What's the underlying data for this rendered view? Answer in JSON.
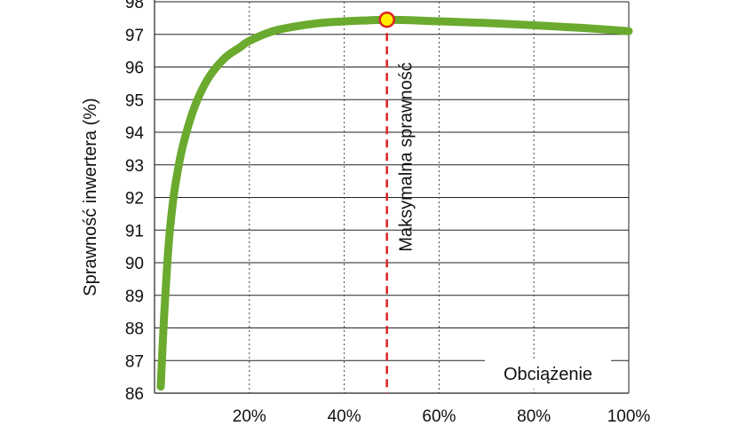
{
  "chart_data": {
    "type": "line",
    "title": "",
    "ylabel": "Sprawność inwertera (%)",
    "xlabel": "Obciążenie",
    "xlim": [
      0,
      100
    ],
    "ylim": [
      86,
      98
    ],
    "grid": true,
    "x_ticks": [
      "20%",
      "40%",
      "60%",
      "80%",
      "100%"
    ],
    "x_tick_values": [
      20,
      40,
      60,
      80,
      100
    ],
    "y_ticks": [
      "86",
      "87",
      "88",
      "89",
      "90",
      "91",
      "92",
      "93",
      "94",
      "95",
      "96",
      "97",
      "98"
    ],
    "series": [
      {
        "color": "#6aaa2e",
        "x": [
          1.3,
          2,
          3,
          4,
          5,
          6,
          8,
          10,
          12,
          15,
          18,
          20,
          25,
          30,
          35,
          40,
          45,
          49,
          55,
          60,
          70,
          80,
          90,
          100
        ],
        "y": [
          86.2,
          88.3,
          90.6,
          92.0,
          92.9,
          93.6,
          94.6,
          95.3,
          95.8,
          96.3,
          96.6,
          96.8,
          97.1,
          97.25,
          97.35,
          97.4,
          97.43,
          97.45,
          97.43,
          97.4,
          97.35,
          97.28,
          97.2,
          97.1
        ]
      }
    ],
    "annotations": [
      {
        "text": "Maksymalna sprawność",
        "x": 49,
        "y": 97.45,
        "line_color": "#dd2222",
        "marker_fill": "#ffee00",
        "marker_stroke": "#dd2222"
      }
    ]
  }
}
